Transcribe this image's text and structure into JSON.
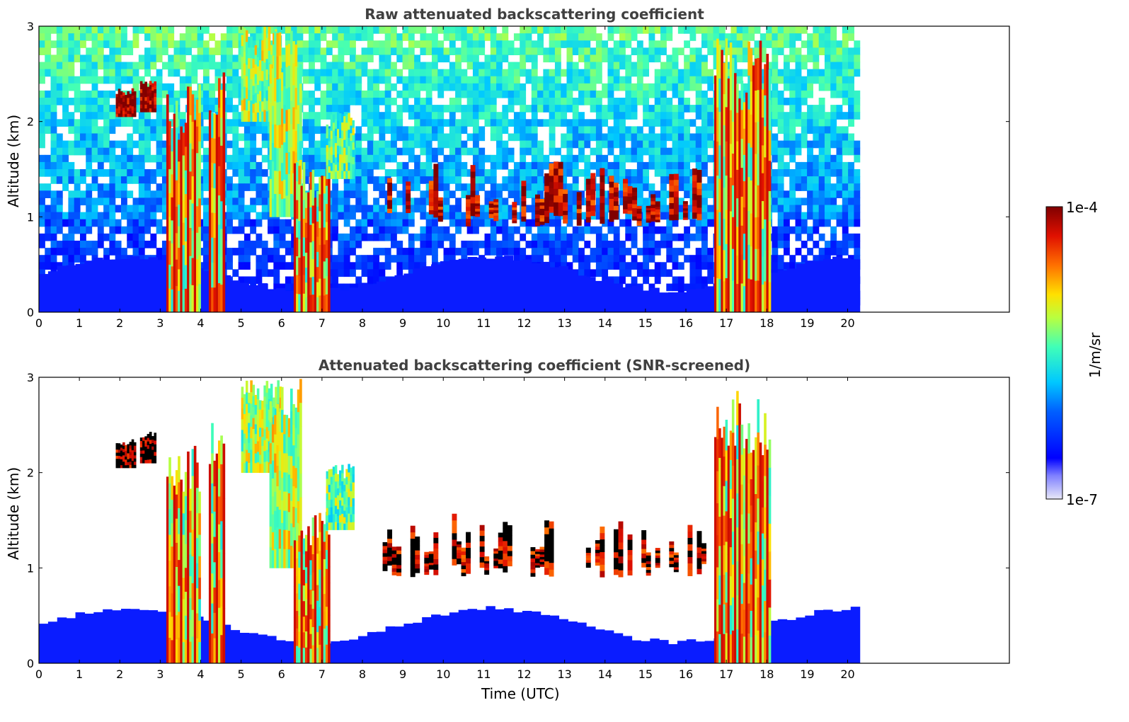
{
  "chart_data": [
    {
      "type": "heatmap",
      "title": "Raw attenuated backscattering coefficient",
      "xlabel": "",
      "ylabel": "Altitude (km)",
      "xlim": [
        0,
        24
      ],
      "ylim": [
        0,
        3
      ],
      "xticks": [
        "0",
        "1",
        "2",
        "3",
        "4",
        "5",
        "6",
        "7",
        "8",
        "9",
        "10",
        "11",
        "12",
        "13",
        "14",
        "15",
        "16",
        "17",
        "18",
        "19",
        "20"
      ],
      "yticks": [
        "0",
        "1",
        "2",
        "3"
      ],
      "data_end_time": 20.3,
      "features": [
        {
          "type": "boundary_layer",
          "x0": 0,
          "x1": 20.3,
          "top": 0.5,
          "level": 0.15
        },
        {
          "type": "cloud",
          "x0": 1.9,
          "x1": 2.4,
          "y0": 2.05,
          "y1": 2.35,
          "level": 1.0
        },
        {
          "type": "cloud",
          "x0": 2.5,
          "x1": 2.9,
          "y0": 2.1,
          "y1": 2.45,
          "level": 1.0
        },
        {
          "type": "precip",
          "x0": 3.15,
          "x1": 4.0,
          "y0": 0.0,
          "y1": 2.4,
          "level": 0.75
        },
        {
          "type": "precip",
          "x0": 4.2,
          "x1": 4.6,
          "y0": 0.0,
          "y1": 2.6,
          "level": 0.7
        },
        {
          "type": "virga",
          "x0": 5.0,
          "x1": 6.0,
          "y0": 2.0,
          "y1": 3.0,
          "level": 0.6
        },
        {
          "type": "virga",
          "x0": 5.7,
          "x1": 6.5,
          "y0": 1.0,
          "y1": 3.0,
          "level": 0.62
        },
        {
          "type": "precip",
          "x0": 6.3,
          "x1": 7.2,
          "y0": 0.0,
          "y1": 1.6,
          "level": 0.75
        },
        {
          "type": "virga",
          "x0": 7.1,
          "x1": 7.8,
          "y0": 1.4,
          "y1": 2.1,
          "level": 0.55
        },
        {
          "type": "cloud_layer",
          "x0": 8.5,
          "x1": 16.5,
          "y0": 0.9,
          "y1": 1.5,
          "level": 0.95
        },
        {
          "type": "precip",
          "x0": 16.7,
          "x1": 17.3,
          "y0": 0.0,
          "y1": 3.0,
          "level": 1.0
        },
        {
          "type": "precip",
          "x0": 17.3,
          "x1": 18.1,
          "y0": 0.0,
          "y1": 2.9,
          "level": 0.8
        }
      ]
    },
    {
      "type": "heatmap",
      "title": "Attenuated backscattering coefficient (SNR-screened)",
      "xlabel": "Time (UTC)",
      "ylabel": "Altitude (km)",
      "xlim": [
        0,
        24
      ],
      "ylim": [
        0,
        3
      ],
      "xticks": [
        "0",
        "1",
        "2",
        "3",
        "4",
        "5",
        "6",
        "7",
        "8",
        "9",
        "10",
        "11",
        "12",
        "13",
        "14",
        "15",
        "16",
        "17",
        "18",
        "19",
        "20"
      ],
      "yticks": [
        "0",
        "1",
        "2",
        "3"
      ],
      "data_end_time": 20.3,
      "features": [
        {
          "type": "boundary_layer",
          "x0": 0,
          "x1": 20.3,
          "top": 0.5,
          "level": 0.15
        },
        {
          "type": "cloud",
          "x0": 1.9,
          "x1": 2.4,
          "y0": 2.05,
          "y1": 2.35,
          "level": 1.0
        },
        {
          "type": "cloud",
          "x0": 2.5,
          "x1": 2.9,
          "y0": 2.1,
          "y1": 2.45,
          "level": 1.0
        },
        {
          "type": "precip",
          "x0": 3.15,
          "x1": 4.0,
          "y0": 0.0,
          "y1": 2.4,
          "level": 0.75
        },
        {
          "type": "precip",
          "x0": 4.2,
          "x1": 4.6,
          "y0": 0.0,
          "y1": 2.6,
          "level": 0.7
        },
        {
          "type": "virga",
          "x0": 5.0,
          "x1": 6.0,
          "y0": 2.0,
          "y1": 3.0,
          "level": 0.6
        },
        {
          "type": "virga",
          "x0": 5.7,
          "x1": 6.5,
          "y0": 1.0,
          "y1": 3.0,
          "level": 0.62
        },
        {
          "type": "precip",
          "x0": 6.3,
          "x1": 7.2,
          "y0": 0.0,
          "y1": 1.6,
          "level": 0.75
        },
        {
          "type": "virga",
          "x0": 7.1,
          "x1": 7.8,
          "y0": 1.4,
          "y1": 2.1,
          "level": 0.55
        },
        {
          "type": "cloud_layer",
          "x0": 8.5,
          "x1": 16.5,
          "y0": 0.9,
          "y1": 1.5,
          "level": 0.95
        },
        {
          "type": "precip",
          "x0": 16.7,
          "x1": 17.3,
          "y0": 0.0,
          "y1": 3.0,
          "level": 1.0
        },
        {
          "type": "precip",
          "x0": 17.3,
          "x1": 18.1,
          "y0": 0.0,
          "y1": 2.9,
          "level": 0.8
        }
      ]
    }
  ],
  "colorbar": {
    "max_label": "1e-4",
    "min_label": "1e-7",
    "unit_label": "1/m/sr",
    "colormap": "jet",
    "scale": "log"
  },
  "colors": {
    "background": "#ffffff",
    "title": "#404040",
    "boundary_layer": "#0a1cff"
  }
}
